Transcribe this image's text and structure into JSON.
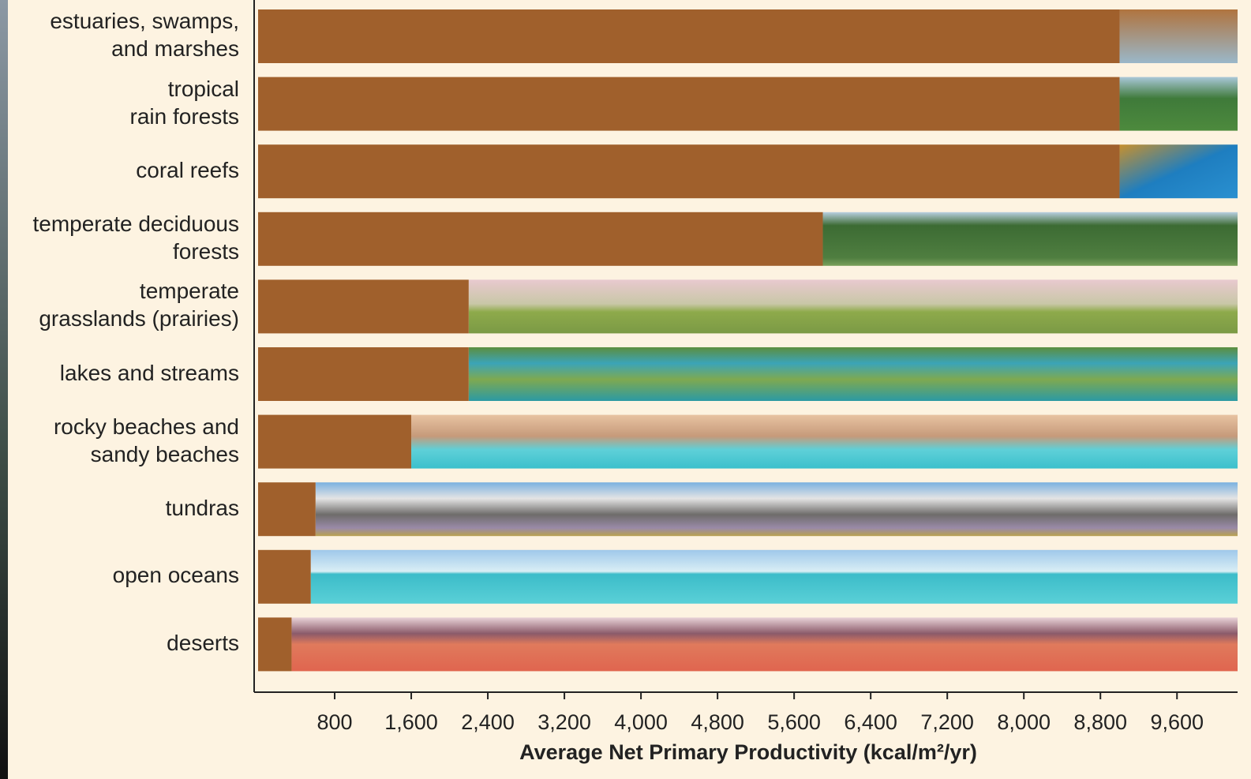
{
  "chart_data": {
    "type": "hbar",
    "x_label": "Average Net Primary Productivity (kcal/m²/yr)",
    "categories": [
      "estuaries, swamps,\nand marshes",
      "tropical\nrain forests",
      "coral reefs",
      "temperate deciduous\nforests",
      "temperate\ngrasslands (prairies)",
      "lakes and streams",
      "rocky beaches and\nsandy beaches",
      "tundras",
      "open oceans",
      "deserts"
    ],
    "values": [
      9000,
      9000,
      9000,
      5900,
      2200,
      2200,
      1600,
      600,
      550,
      350
    ],
    "color": "#a0602c",
    "xlim": [
      0,
      10200
    ],
    "xticks": [
      800,
      {
        "value": 1600,
        "label": "1,600"
      },
      {
        "value": 2400,
        "label": "2,400"
      },
      {
        "value": 3200,
        "label": "3,200"
      },
      {
        "value": 4000,
        "label": "4,000"
      },
      {
        "value": 4800,
        "label": "4,800"
      },
      {
        "value": 5600,
        "label": "5,600"
      },
      {
        "value": 6400,
        "label": "6,400"
      },
      {
        "value": 7200,
        "label": "7,200"
      },
      {
        "value": 8000,
        "label": "8,000"
      },
      {
        "value": 8800,
        "label": "8,800"
      },
      {
        "value": 9600,
        "label": "9,600"
      }
    ]
  }
}
